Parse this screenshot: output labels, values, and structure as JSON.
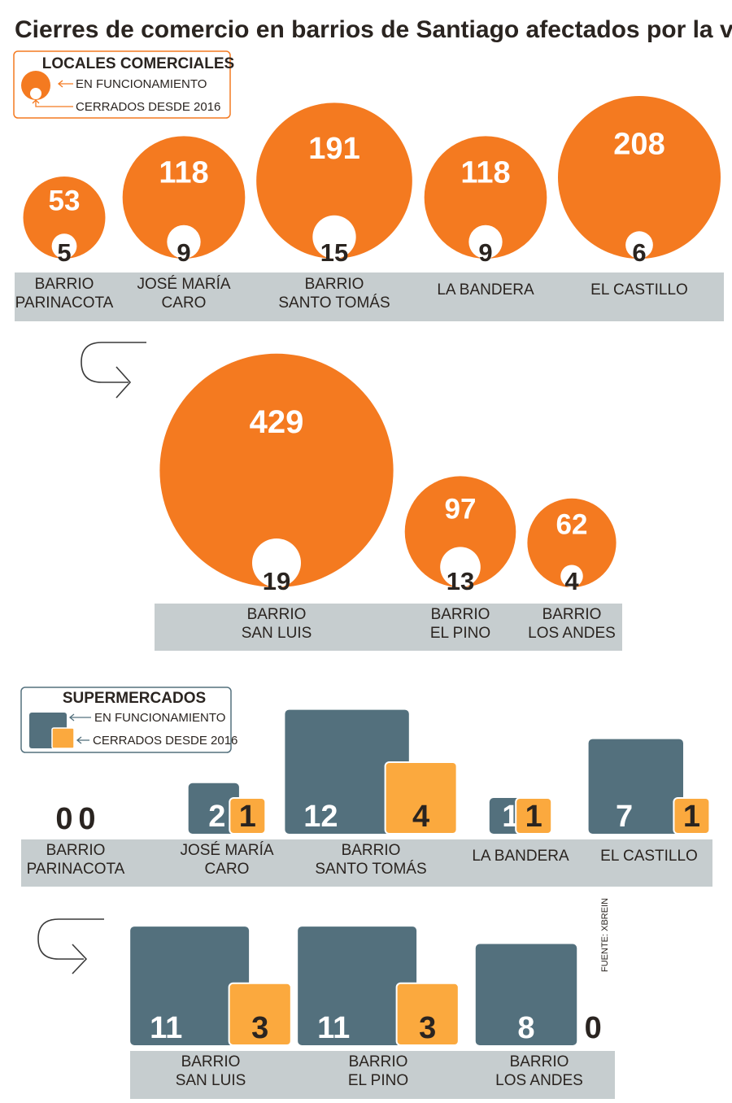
{
  "title": "Cierres de comercio en barrios de Santiago afectados por la violencia",
  "source": "FUENTE: XBREIN",
  "colors": {
    "orange": "#f47a20",
    "slate": "#53707d",
    "amber": "#fba93e",
    "band": "#c6cdcf",
    "text": "#2a2420",
    "arrow": "#3a3a3a"
  },
  "chart_data": [
    {
      "type": "bubble",
      "section_title": "LOCALES COMERCIALES",
      "legend": {
        "open": "EN FUNCIONAMIENTO",
        "closed": "CERRADOS DESDE 2016"
      },
      "series": [
        {
          "name": "EN FUNCIONAMIENTO",
          "values": [
            53,
            118,
            191,
            118,
            208,
            429,
            97,
            62
          ]
        },
        {
          "name": "CERRADOS DESDE 2016",
          "values": [
            5,
            9,
            15,
            9,
            6,
            19,
            13,
            4
          ]
        }
      ],
      "neighborhoods": [
        {
          "label": [
            "BARRIO",
            "PARINACOTA"
          ],
          "open": 53,
          "closed": 5
        },
        {
          "label": [
            "JOSÉ MARÍA",
            "CARO"
          ],
          "open": 118,
          "closed": 9
        },
        {
          "label": [
            "BARRIO",
            "SANTO TOMÁS"
          ],
          "open": 191,
          "closed": 15
        },
        {
          "label": [
            "LA BANDERA"
          ],
          "open": 118,
          "closed": 9
        },
        {
          "label": [
            "EL CASTILLO"
          ],
          "open": 208,
          "closed": 6
        },
        {
          "label": [
            "BARRIO",
            "SAN LUIS"
          ],
          "open": 429,
          "closed": 19
        },
        {
          "label": [
            "BARRIO",
            "EL PINO"
          ],
          "open": 97,
          "closed": 13
        },
        {
          "label": [
            "BARRIO",
            "LOS ANDES"
          ],
          "open": 62,
          "closed": 4
        }
      ]
    },
    {
      "type": "bar",
      "section_title": "SUPERMERCADOS",
      "legend": {
        "open": "EN FUNCIONAMIENTO",
        "closed": "CERRADOS DESDE 2016"
      },
      "series": [
        {
          "name": "EN FUNCIONAMIENTO",
          "values": [
            0,
            2,
            12,
            1,
            7,
            11,
            11,
            8
          ]
        },
        {
          "name": "CERRADOS DESDE 2016",
          "values": [
            0,
            1,
            4,
            1,
            1,
            3,
            3,
            0
          ]
        }
      ],
      "neighborhoods": [
        {
          "label": [
            "BARRIO",
            "PARINACOTA"
          ],
          "open": 0,
          "closed": 0
        },
        {
          "label": [
            "JOSÉ MARÍA",
            "CARO"
          ],
          "open": 2,
          "closed": 1
        },
        {
          "label": [
            "BARRIO",
            "SANTO TOMÁS"
          ],
          "open": 12,
          "closed": 4
        },
        {
          "label": [
            "LA BANDERA"
          ],
          "open": 1,
          "closed": 1
        },
        {
          "label": [
            "EL CASTILLO"
          ],
          "open": 7,
          "closed": 1
        },
        {
          "label": [
            "BARRIO",
            "SAN LUIS"
          ],
          "open": 11,
          "closed": 3
        },
        {
          "label": [
            "BARRIO",
            "EL PINO"
          ],
          "open": 11,
          "closed": 3
        },
        {
          "label": [
            "BARRIO",
            "LOS ANDES"
          ],
          "open": 8,
          "closed": 0
        }
      ]
    }
  ]
}
